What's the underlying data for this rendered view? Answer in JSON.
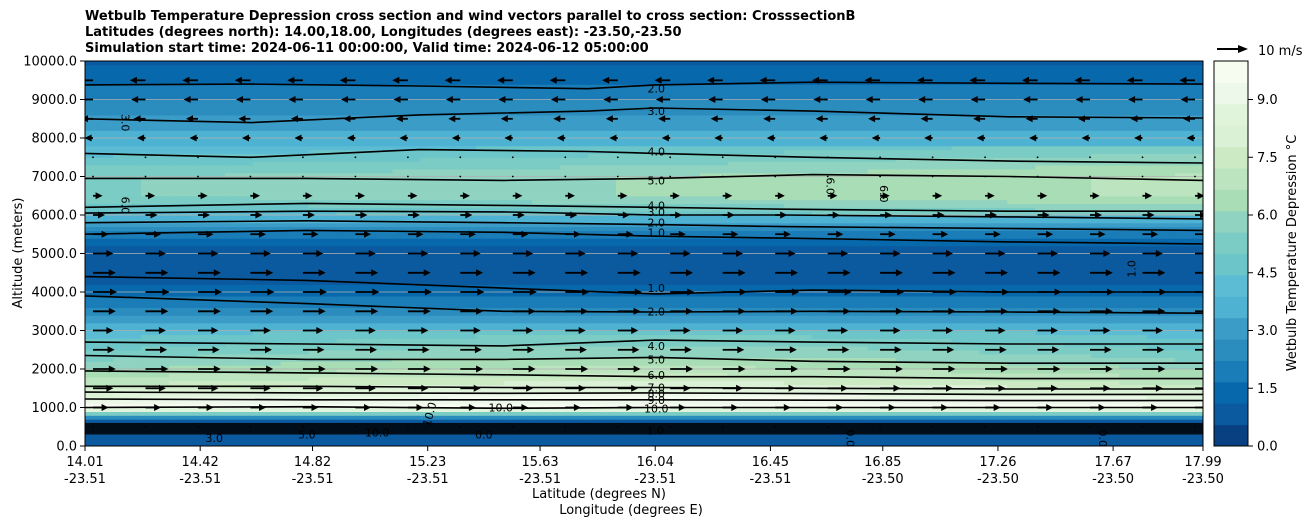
{
  "chart_data": {
    "type": "heatmap",
    "title_lines": [
      "Wetbulb Temperature Depression cross section and wind vectors parallel to cross section: CrosssectionB",
      "Latitudes (degrees north): 14.00,18.00, Longitudes (degrees east): -23.50,-23.50",
      "Simulation start time: 2024-06-11 00:00:00, Valid time: 2024-06-12 05:00:00"
    ],
    "ylabel": "Altitude (meters)",
    "xlabel_lat": "Latitude (degrees N)",
    "xlabel_lon": "Longitude (degrees E)",
    "ylim": [
      0,
      10000
    ],
    "y_ticks": [
      {
        "value": 0,
        "label": "0.0"
      },
      {
        "value": 1000,
        "label": "1000.0"
      },
      {
        "value": 2000,
        "label": "2000.0"
      },
      {
        "value": 3000,
        "label": "3000.0"
      },
      {
        "value": 4000,
        "label": "4000.0"
      },
      {
        "value": 5000,
        "label": "5000.0"
      },
      {
        "value": 6000,
        "label": "6000.0"
      },
      {
        "value": 7000,
        "label": "7000.0"
      },
      {
        "value": 8000,
        "label": "8000.0"
      },
      {
        "value": 9000,
        "label": "9000.0"
      },
      {
        "value": 10000,
        "label": "10000.0"
      }
    ],
    "x_range": [
      14.01,
      17.99
    ],
    "x_ticks": [
      {
        "value": 14.01,
        "lat": "14.01",
        "lon": "-23.51"
      },
      {
        "value": 14.42,
        "lat": "14.42",
        "lon": "-23.51"
      },
      {
        "value": 14.82,
        "lat": "14.82",
        "lon": "-23.51"
      },
      {
        "value": 15.23,
        "lat": "15.23",
        "lon": "-23.51"
      },
      {
        "value": 15.63,
        "lat": "15.63",
        "lon": "-23.51"
      },
      {
        "value": 16.04,
        "lat": "16.04",
        "lon": "-23.51"
      },
      {
        "value": 16.45,
        "lat": "16.45",
        "lon": "-23.51"
      },
      {
        "value": 16.85,
        "lat": "16.85",
        "lon": "-23.50"
      },
      {
        "value": 17.26,
        "lat": "17.26",
        "lon": "-23.50"
      },
      {
        "value": 17.67,
        "lat": "17.67",
        "lon": "-23.50"
      },
      {
        "value": 17.99,
        "lat": "17.99",
        "lon": "-23.50"
      }
    ],
    "colorbar": {
      "label": "Wetbulb Temperature Depression °C",
      "range": [
        0,
        10
      ],
      "ticks": [
        "0.0",
        "1.5",
        "3.0",
        "4.5",
        "6.0",
        "7.5",
        "9.0"
      ],
      "tick_values": [
        0,
        1.5,
        3.0,
        4.5,
        6.0,
        7.5,
        9.0
      ],
      "colors": [
        "#084081",
        "#0b5a9f",
        "#0868ac",
        "#1a7db7",
        "#2b8cbe",
        "#3c9cc8",
        "#4eb3d3",
        "#5bbcd4",
        "#6cc5c9",
        "#7bccc4",
        "#8fd3c0",
        "#a8ddb5",
        "#bce4be",
        "#ccebc5",
        "#dbf1d5",
        "#e0f3db",
        "#eef8ea",
        "#f7fcf0"
      ]
    },
    "wind_legend": "10 m/s",
    "depression_profile": [
      {
        "alt": 0,
        "value": 1.0
      },
      {
        "alt": 300,
        "value": 0.5
      },
      {
        "alt": 700,
        "value": 1.0
      },
      {
        "alt": 1000,
        "value": 10.0
      },
      {
        "alt": 1200,
        "value": 9.0
      },
      {
        "alt": 1500,
        "value": 7.5
      },
      {
        "alt": 2000,
        "value": 6.0
      },
      {
        "alt": 2500,
        "value": 5.0
      },
      {
        "alt": 3000,
        "value": 4.0
      },
      {
        "alt": 3500,
        "value": 2.5
      },
      {
        "alt": 4000,
        "value": 1.5
      },
      {
        "alt": 4500,
        "value": 0.6
      },
      {
        "alt": 5000,
        "value": 0.8
      },
      {
        "alt": 5500,
        "value": 1.8
      },
      {
        "alt": 6000,
        "value": 4.0
      },
      {
        "alt": 6500,
        "value": 5.5
      },
      {
        "alt": 7000,
        "value": 5.5
      },
      {
        "alt": 7500,
        "value": 4.5
      },
      {
        "alt": 8000,
        "value": 3.5
      },
      {
        "alt": 8500,
        "value": 3.0
      },
      {
        "alt": 9000,
        "value": 2.2
      },
      {
        "alt": 9500,
        "value": 1.5
      },
      {
        "alt": 10000,
        "value": 1.0
      }
    ],
    "contours": [
      {
        "label": "2.0",
        "points": [
          [
            14.01,
            9380
          ],
          [
            14.6,
            9400
          ],
          [
            15.2,
            9350
          ],
          [
            15.8,
            9280
          ],
          [
            16.04,
            9380
          ],
          [
            16.6,
            9450
          ],
          [
            17.3,
            9420
          ],
          [
            17.99,
            9400
          ]
        ]
      },
      {
        "label": "3.0",
        "points": [
          [
            14.01,
            8500
          ],
          [
            14.6,
            8400
          ],
          [
            15.2,
            8600
          ],
          [
            15.8,
            8700
          ],
          [
            16.04,
            8780
          ],
          [
            16.6,
            8700
          ],
          [
            17.3,
            8550
          ],
          [
            17.99,
            8520
          ]
        ]
      },
      {
        "label": "4.0",
        "points": [
          [
            14.01,
            7600
          ],
          [
            14.6,
            7500
          ],
          [
            15.2,
            7700
          ],
          [
            15.8,
            7650
          ],
          [
            16.04,
            7600
          ],
          [
            16.6,
            7500
          ],
          [
            17.3,
            7400
          ],
          [
            17.99,
            7350
          ]
        ]
      },
      {
        "label": "5.0",
        "points": [
          [
            14.01,
            6950
          ],
          [
            14.8,
            6950
          ],
          [
            15.5,
            6900
          ],
          [
            16.04,
            6950
          ],
          [
            16.6,
            7050
          ],
          [
            17.3,
            7000
          ],
          [
            17.99,
            6900
          ]
        ]
      },
      {
        "label": "4.0",
        "points": [
          [
            14.01,
            6200
          ],
          [
            14.8,
            6300
          ],
          [
            15.5,
            6250
          ],
          [
            16.04,
            6200
          ],
          [
            16.5,
            6150
          ],
          [
            17.3,
            6100
          ],
          [
            17.99,
            6100
          ]
        ]
      },
      {
        "label": "3.0",
        "points": [
          [
            14.01,
            6050
          ],
          [
            14.8,
            6100
          ],
          [
            15.5,
            6080
          ],
          [
            16.04,
            6000
          ],
          [
            16.5,
            6000
          ],
          [
            17.3,
            5950
          ],
          [
            17.99,
            5900
          ]
        ]
      },
      {
        "label": "2.0",
        "points": [
          [
            14.01,
            5800
          ],
          [
            14.8,
            5850
          ],
          [
            15.5,
            5800
          ],
          [
            16.04,
            5750
          ],
          [
            16.5,
            5700
          ],
          [
            17.3,
            5650
          ],
          [
            17.99,
            5600
          ]
        ]
      },
      {
        "label": "1.0",
        "points": [
          [
            14.01,
            5500
          ],
          [
            14.8,
            5600
          ],
          [
            15.5,
            5550
          ],
          [
            16.04,
            5450
          ],
          [
            16.5,
            5400
          ],
          [
            17.3,
            5300
          ],
          [
            17.99,
            5250
          ]
        ]
      },
      {
        "label": "1.0",
        "points": [
          [
            14.01,
            4400
          ],
          [
            14.8,
            4300
          ],
          [
            15.5,
            4100
          ],
          [
            16.04,
            3950
          ],
          [
            16.6,
            4050
          ],
          [
            17.3,
            4000
          ],
          [
            17.99,
            4000
          ]
        ]
      },
      {
        "label": "2.0",
        "points": [
          [
            14.01,
            3900
          ],
          [
            14.8,
            3700
          ],
          [
            15.5,
            3500
          ],
          [
            16.04,
            3480
          ],
          [
            16.6,
            3500
          ],
          [
            17.3,
            3480
          ],
          [
            17.99,
            3450
          ]
        ]
      },
      {
        "label": "4.0",
        "points": [
          [
            14.01,
            2700
          ],
          [
            14.8,
            2650
          ],
          [
            15.5,
            2600
          ],
          [
            16.04,
            2750
          ],
          [
            16.6,
            2700
          ],
          [
            17.3,
            2650
          ],
          [
            17.99,
            2650
          ]
        ]
      },
      {
        "label": "5.0",
        "points": [
          [
            14.01,
            2350
          ],
          [
            14.8,
            2250
          ],
          [
            15.5,
            2250
          ],
          [
            16.04,
            2300
          ],
          [
            16.6,
            2200
          ],
          [
            17.3,
            2150
          ],
          [
            17.99,
            2150
          ]
        ]
      },
      {
        "label": "6.0",
        "points": [
          [
            14.01,
            1950
          ],
          [
            14.8,
            1900
          ],
          [
            15.5,
            1850
          ],
          [
            16.04,
            1800
          ],
          [
            16.6,
            1800
          ],
          [
            17.3,
            1750
          ],
          [
            17.99,
            1750
          ]
        ]
      },
      {
        "label": "7.0",
        "points": [
          [
            14.01,
            1550
          ],
          [
            14.8,
            1550
          ],
          [
            15.5,
            1520
          ],
          [
            16.04,
            1520
          ],
          [
            16.6,
            1500
          ],
          [
            17.3,
            1480
          ],
          [
            17.99,
            1480
          ]
        ]
      },
      {
        "label": "8.0",
        "points": [
          [
            14.01,
            1400
          ],
          [
            14.8,
            1380
          ],
          [
            15.5,
            1370
          ],
          [
            16.04,
            1380
          ],
          [
            16.6,
            1360
          ],
          [
            17.3,
            1340
          ],
          [
            17.99,
            1340
          ]
        ]
      },
      {
        "label": "9.0",
        "points": [
          [
            14.01,
            1220
          ],
          [
            14.8,
            1200
          ],
          [
            15.5,
            1200
          ],
          [
            16.04,
            1200
          ],
          [
            16.6,
            1190
          ],
          [
            17.3,
            1180
          ],
          [
            17.99,
            1180
          ]
        ]
      },
      {
        "label": "10.0",
        "points": [
          [
            14.01,
            1000
          ],
          [
            14.8,
            1020
          ],
          [
            15.5,
            980
          ],
          [
            16.04,
            1000
          ],
          [
            16.6,
            1000
          ],
          [
            17.3,
            1000
          ],
          [
            17.99,
            1000
          ]
        ]
      }
    ],
    "extra_contour_labels": [
      {
        "label": "3.0",
        "x": 14.14,
        "alt": 8400,
        "rot": 90
      },
      {
        "label": "6.0",
        "x": 14.14,
        "alt": 6250,
        "rot": 90
      },
      {
        "label": "6.0",
        "x": 16.84,
        "alt": 6550,
        "rot": 90
      },
      {
        "label": "6.0",
        "x": 16.65,
        "alt": 6750,
        "rot": 90
      },
      {
        "label": "1.0",
        "x": 17.75,
        "alt": 4600,
        "rot": -90
      },
      {
        "label": "10.0",
        "x": 15.49,
        "alt": 900,
        "rot": 0
      },
      {
        "label": "10.0",
        "x": 15.25,
        "alt": 800,
        "rot": -75
      },
      {
        "label": "10.0",
        "x": 15.05,
        "alt": 250,
        "rot": 0
      },
      {
        "label": "5.0",
        "x": 14.8,
        "alt": 200,
        "rot": 0
      },
      {
        "label": "0.0",
        "x": 15.43,
        "alt": 200,
        "rot": 0
      },
      {
        "label": "0.0",
        "x": 16.72,
        "alt": 200,
        "rot": 90
      },
      {
        "label": "0.0",
        "x": 17.62,
        "alt": 200,
        "rot": 90
      },
      {
        "label": "3.0",
        "x": 14.47,
        "alt": 100,
        "rot": 0
      },
      {
        "label": "1.0",
        "x": 16.04,
        "alt": 300,
        "rot": 0
      }
    ],
    "wind_u_profile": [
      {
        "alt": 500,
        "u": 0
      },
      {
        "alt": 1000,
        "u": 4
      },
      {
        "alt": 1500,
        "u": 6
      },
      {
        "alt": 2000,
        "u": 7
      },
      {
        "alt": 2500,
        "u": 6.5
      },
      {
        "alt": 3000,
        "u": 6
      },
      {
        "alt": 3500,
        "u": 7
      },
      {
        "alt": 4000,
        "u": 7.5
      },
      {
        "alt": 4500,
        "u": 7
      },
      {
        "alt": 5000,
        "u": 6
      },
      {
        "alt": 5500,
        "u": 4
      },
      {
        "alt": 6000,
        "u": 2.5
      },
      {
        "alt": 6500,
        "u": 1.5
      },
      {
        "alt": 7000,
        "u": 0
      },
      {
        "alt": 7500,
        "u": -0.5
      },
      {
        "alt": 8000,
        "u": -1
      },
      {
        "alt": 8500,
        "u": -2.5
      },
      {
        "alt": 9000,
        "u": -3.5
      },
      {
        "alt": 9500,
        "u": -4
      }
    ]
  }
}
